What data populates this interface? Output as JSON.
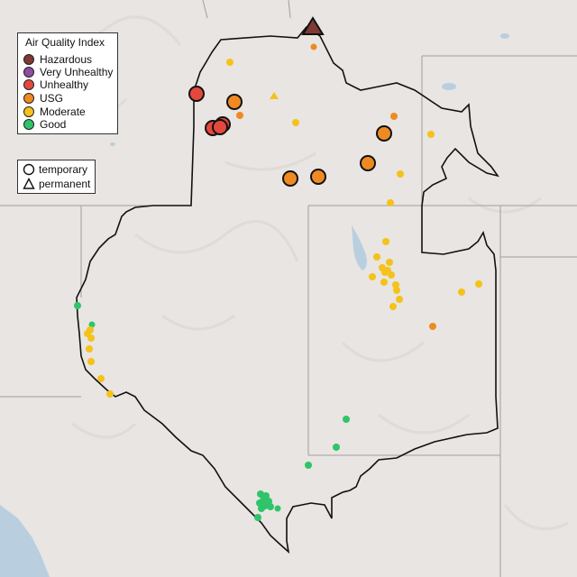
{
  "legend": {
    "title": "Air Quality Index",
    "categories": [
      {
        "label": "Hazardous",
        "color": "#7e3a33"
      },
      {
        "label": "Very Unhealthy",
        "color": "#8f4ea0"
      },
      {
        "label": "Unhealthy",
        "color": "#e4483d"
      },
      {
        "label": "USG",
        "color": "#ef8a22"
      },
      {
        "label": "Moderate",
        "color": "#f4c21a"
      },
      {
        "label": "Good",
        "color": "#2fc46a"
      }
    ],
    "shapes": [
      {
        "label": "temporary",
        "icon": "circle"
      },
      {
        "label": "permanent",
        "icon": "triangle"
      }
    ]
  }
}
